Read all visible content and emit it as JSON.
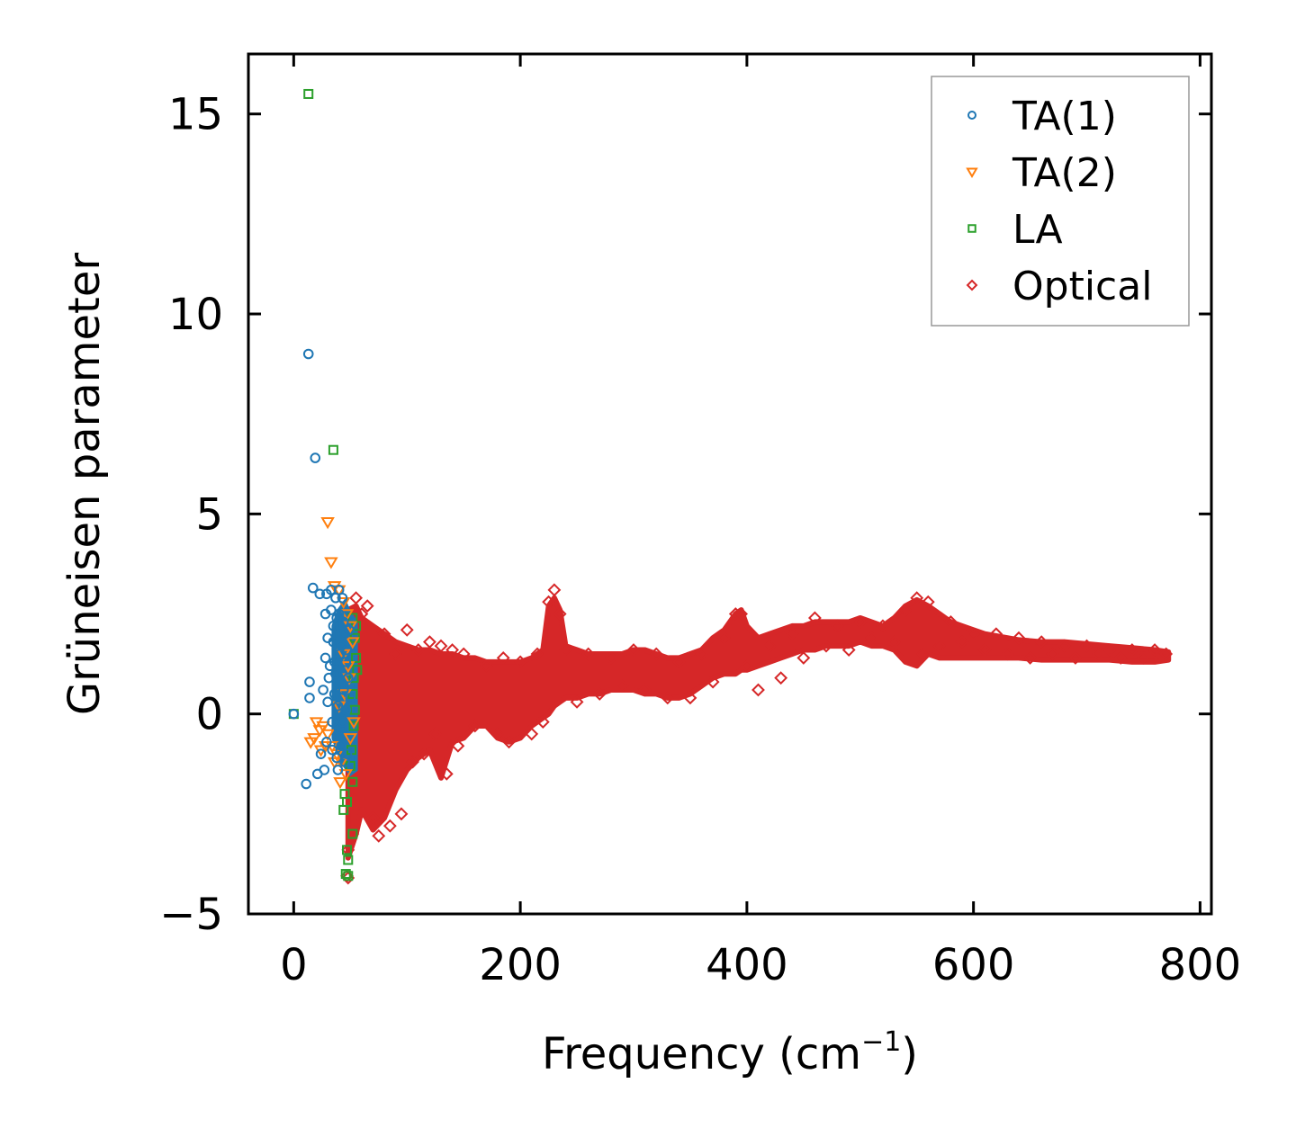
{
  "chart_data": {
    "type": "scatter",
    "title": "",
    "xlabel": "Frequency (cm",
    "xlabel_sup": "−1",
    "xlabel_end": ")",
    "ylabel": "Grüneisen parameter",
    "xlim": [
      -40,
      810
    ],
    "ylim": [
      -5,
      16.5
    ],
    "xticks": [
      0,
      200,
      400,
      600,
      800
    ],
    "xtick_labels": [
      "0",
      "200",
      "400",
      "600",
      "800"
    ],
    "yticks": [
      -5,
      0,
      5,
      10,
      15
    ],
    "ytick_labels": [
      "−5",
      "0",
      "5",
      "10",
      "15"
    ],
    "grid": false,
    "legend_position": "top-right",
    "series": [
      {
        "name": "TA(1)",
        "marker": "circle",
        "color": "#1f77b4",
        "points": [
          [
            0,
            0
          ],
          [
            13,
            9.0
          ],
          [
            19,
            6.4
          ],
          [
            17,
            3.15
          ],
          [
            23,
            3.0
          ],
          [
            28,
            2.5
          ],
          [
            33,
            3.1
          ],
          [
            37,
            2.9
          ],
          [
            43,
            2.9
          ],
          [
            30,
            1.9
          ],
          [
            35,
            2.2
          ],
          [
            40,
            2.5
          ],
          [
            45,
            2.0
          ],
          [
            28,
            1.4
          ],
          [
            32,
            1.2
          ],
          [
            37,
            1.0
          ],
          [
            41,
            1.5
          ],
          [
            46,
            1.3
          ],
          [
            14,
            0.8
          ],
          [
            14,
            0.4
          ],
          [
            26,
            0.6
          ],
          [
            30,
            0.3
          ],
          [
            36,
            0.5
          ],
          [
            39,
            0.2
          ],
          [
            44,
            0.6
          ],
          [
            48,
            0.9
          ],
          [
            34,
            -0.2
          ],
          [
            40,
            -0.4
          ],
          [
            43,
            -0.2
          ],
          [
            29,
            -0.7
          ],
          [
            34,
            -0.9
          ],
          [
            38,
            -1.1
          ],
          [
            42,
            -0.8
          ],
          [
            47,
            -1.0
          ],
          [
            24,
            -1.0
          ],
          [
            27,
            -1.4
          ],
          [
            21,
            -1.5
          ],
          [
            11,
            -1.75
          ],
          [
            39,
            -1.4
          ],
          [
            45,
            -1.2
          ],
          [
            35,
            1.8
          ],
          [
            42,
            1.7
          ],
          [
            47,
            1.6
          ],
          [
            31,
            0.9
          ],
          [
            36,
            1.3
          ],
          [
            41,
            2.2
          ],
          [
            33,
            2.6
          ],
          [
            38,
            2.4
          ],
          [
            44,
            2.3
          ],
          [
            49,
            2.1
          ],
          [
            46,
            0.1
          ],
          [
            50,
            0.4
          ],
          [
            29,
            3.0
          ],
          [
            40,
            3.1
          ]
        ]
      },
      {
        "name": "TA(2)",
        "marker": "triangle-down",
        "color": "#ff7f0e",
        "points": [
          [
            30,
            4.8
          ],
          [
            33,
            3.8
          ],
          [
            36,
            3.2
          ],
          [
            40,
            3.1
          ],
          [
            44,
            2.8
          ],
          [
            47,
            2.5
          ],
          [
            50,
            2.2
          ],
          [
            52,
            1.8
          ],
          [
            44,
            1.5
          ],
          [
            48,
            1.2
          ],
          [
            20,
            -0.2
          ],
          [
            23,
            -0.4
          ],
          [
            18,
            -0.6
          ],
          [
            15,
            -0.7
          ],
          [
            26,
            -0.3
          ],
          [
            30,
            -0.5
          ],
          [
            34,
            -0.8
          ],
          [
            38,
            -1.0
          ],
          [
            42,
            -1.2
          ],
          [
            46,
            -1.5
          ],
          [
            50,
            -0.6
          ],
          [
            53,
            -0.2
          ],
          [
            40,
            0.2
          ],
          [
            45,
            0.5
          ],
          [
            49,
            0.9
          ],
          [
            41,
            -1.7
          ],
          [
            36,
            -1.2
          ],
          [
            28,
            -0.8
          ],
          [
            24,
            -0.9
          ]
        ]
      },
      {
        "name": "LA",
        "marker": "square",
        "color": "#2ca02c",
        "points": [
          [
            13,
            15.5
          ],
          [
            35,
            6.6
          ],
          [
            0,
            0
          ],
          [
            52,
            2.4
          ],
          [
            54,
            1.9
          ],
          [
            55,
            1.4
          ],
          [
            53,
            0.9
          ],
          [
            52,
            0.5
          ],
          [
            54,
            0.1
          ],
          [
            53,
            -0.3
          ],
          [
            51,
            -0.9
          ],
          [
            50,
            -1.3
          ],
          [
            52,
            -1.7
          ],
          [
            45,
            -2.0
          ],
          [
            47,
            -2.2
          ],
          [
            44,
            -2.4
          ],
          [
            52,
            -3.0
          ],
          [
            47,
            -3.4
          ],
          [
            48,
            -3.65
          ],
          [
            46,
            -4.0
          ],
          [
            48,
            -4.05
          ],
          [
            55,
            2.2
          ],
          [
            56,
            1.1
          ]
        ]
      },
      {
        "name": "Optical",
        "marker": "diamond",
        "color": "#d62728",
        "points": [
          [
            47,
            -4.05
          ],
          [
            48,
            -4.1
          ],
          [
            48,
            -3.4
          ],
          [
            52,
            -3.0
          ],
          [
            55,
            2.9
          ],
          [
            60,
            2.5
          ],
          [
            65,
            2.7
          ],
          [
            70,
            -2.6
          ],
          [
            75,
            -3.05
          ],
          [
            80,
            2.0
          ],
          [
            85,
            -2.8
          ],
          [
            90,
            1.5
          ],
          [
            95,
            -2.5
          ],
          [
            100,
            2.1
          ],
          [
            105,
            -1.2
          ],
          [
            110,
            1.6
          ],
          [
            115,
            -1.0
          ],
          [
            120,
            1.8
          ],
          [
            125,
            -0.5
          ],
          [
            130,
            1.7
          ],
          [
            135,
            -1.5
          ],
          [
            140,
            1.6
          ],
          [
            145,
            -0.8
          ],
          [
            150,
            1.5
          ],
          [
            160,
            -0.3
          ],
          [
            170,
            1.2
          ],
          [
            180,
            -0.5
          ],
          [
            185,
            1.4
          ],
          [
            190,
            -0.7
          ],
          [
            200,
            1.3
          ],
          [
            210,
            -0.5
          ],
          [
            215,
            1.5
          ],
          [
            220,
            -0.2
          ],
          [
            225,
            2.8
          ],
          [
            230,
            3.1
          ],
          [
            235,
            2.5
          ],
          [
            240,
            1.6
          ],
          [
            250,
            0.3
          ],
          [
            260,
            1.5
          ],
          [
            270,
            0.5
          ],
          [
            280,
            1.4
          ],
          [
            290,
            0.7
          ],
          [
            300,
            1.6
          ],
          [
            310,
            0.6
          ],
          [
            320,
            1.5
          ],
          [
            330,
            0.4
          ],
          [
            340,
            1.3
          ],
          [
            350,
            0.4
          ],
          [
            360,
            1.5
          ],
          [
            370,
            0.8
          ],
          [
            380,
            1.9
          ],
          [
            390,
            2.5
          ],
          [
            395,
            2.5
          ],
          [
            400,
            1.2
          ],
          [
            410,
            0.6
          ],
          [
            420,
            1.7
          ],
          [
            430,
            0.9
          ],
          [
            440,
            2.0
          ],
          [
            450,
            1.4
          ],
          [
            460,
            2.4
          ],
          [
            470,
            1.7
          ],
          [
            480,
            2.2
          ],
          [
            490,
            1.6
          ],
          [
            500,
            2.3
          ],
          [
            510,
            1.9
          ],
          [
            520,
            2.2
          ],
          [
            530,
            1.8
          ],
          [
            540,
            2.6
          ],
          [
            550,
            2.9
          ],
          [
            555,
            1.5
          ],
          [
            560,
            2.8
          ],
          [
            570,
            1.7
          ],
          [
            580,
            2.3
          ],
          [
            590,
            1.8
          ],
          [
            600,
            2.0
          ],
          [
            610,
            1.6
          ],
          [
            620,
            2.0
          ],
          [
            630,
            1.5
          ],
          [
            640,
            1.9
          ],
          [
            650,
            1.4
          ],
          [
            660,
            1.8
          ],
          [
            670,
            1.5
          ],
          [
            680,
            1.7
          ],
          [
            690,
            1.4
          ],
          [
            700,
            1.7
          ],
          [
            710,
            1.5
          ],
          [
            720,
            1.6
          ],
          [
            730,
            1.4
          ],
          [
            740,
            1.6
          ],
          [
            750,
            1.4
          ],
          [
            760,
            1.6
          ],
          [
            770,
            1.5
          ]
        ]
      }
    ],
    "optical_band": {
      "x": [
        48,
        55,
        60,
        70,
        80,
        90,
        100,
        110,
        120,
        130,
        140,
        150,
        160,
        170,
        180,
        190,
        200,
        210,
        220,
        225,
        230,
        235,
        240,
        250,
        260,
        270,
        280,
        290,
        300,
        310,
        320,
        330,
        340,
        350,
        360,
        370,
        380,
        390,
        395,
        400,
        410,
        420,
        430,
        440,
        450,
        460,
        470,
        480,
        490,
        500,
        510,
        520,
        530,
        540,
        550,
        560,
        570,
        580,
        590,
        600,
        610,
        620,
        640,
        660,
        680,
        700,
        720,
        740,
        760,
        772
      ],
      "upper": [
        2.6,
        2.7,
        2.4,
        2.2,
        2.0,
        1.8,
        1.7,
        1.6,
        1.6,
        1.5,
        1.5,
        1.4,
        1.4,
        1.3,
        1.3,
        1.3,
        1.3,
        1.4,
        1.6,
        2.7,
        2.9,
        2.6,
        1.7,
        1.6,
        1.5,
        1.5,
        1.5,
        1.5,
        1.6,
        1.6,
        1.5,
        1.4,
        1.4,
        1.5,
        1.6,
        1.9,
        2.1,
        2.5,
        2.6,
        2.2,
        1.9,
        2.0,
        2.1,
        2.2,
        2.2,
        2.3,
        2.3,
        2.3,
        2.3,
        2.4,
        2.3,
        2.2,
        2.4,
        2.7,
        2.85,
        2.7,
        2.5,
        2.3,
        2.2,
        2.1,
        2.0,
        1.95,
        1.85,
        1.8,
        1.8,
        1.75,
        1.7,
        1.65,
        1.6,
        1.55
      ],
      "lower": [
        -3.6,
        -3.0,
        -2.4,
        -2.9,
        -2.6,
        -1.9,
        -1.4,
        -1.1,
        -0.9,
        -1.6,
        -0.7,
        -0.6,
        -0.3,
        -0.3,
        -0.6,
        -0.7,
        -0.6,
        -0.3,
        -0.1,
        0.0,
        0.2,
        0.3,
        0.4,
        0.4,
        0.5,
        0.5,
        0.6,
        0.6,
        0.6,
        0.5,
        0.5,
        0.4,
        0.4,
        0.5,
        0.7,
        0.9,
        1.0,
        1.0,
        1.1,
        1.1,
        1.2,
        1.3,
        1.4,
        1.5,
        1.6,
        1.6,
        1.7,
        1.7,
        1.7,
        1.8,
        1.7,
        1.7,
        1.6,
        1.3,
        1.2,
        1.5,
        1.4,
        1.4,
        1.4,
        1.4,
        1.4,
        1.4,
        1.4,
        1.35,
        1.35,
        1.35,
        1.35,
        1.3,
        1.3,
        1.35
      ]
    },
    "acoustic_cluster": {
      "x": [
        35,
        40,
        45,
        50,
        55
      ],
      "upper": [
        2.2,
        2.6,
        2.8,
        2.5,
        2.3
      ],
      "lower": [
        -0.6,
        -1.0,
        -1.3,
        -1.5,
        -1.4
      ]
    }
  }
}
